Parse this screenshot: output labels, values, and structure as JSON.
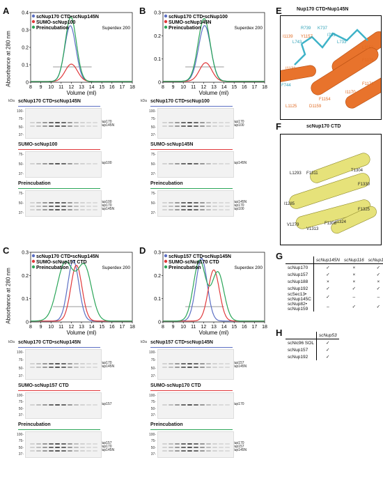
{
  "panels": {
    "A": {
      "letter": "A",
      "legend": [
        "scNup170 CTD•scNup145N",
        "SUMO-scNup100",
        "Preincubation"
      ],
      "column": "Superdex 200"
    },
    "B": {
      "letter": "B",
      "legend": [
        "scNup170 CTD•scNup100",
        "SUMO-scNup145N",
        "Preincubation"
      ],
      "column": "Superdex 200"
    },
    "C": {
      "letter": "C",
      "legend": [
        "scNup170 CTD•scNup145N",
        "SUMO-scNup157 CTD",
        "Preincubation"
      ],
      "column": "Superdex 200"
    },
    "D": {
      "letter": "D",
      "legend": [
        "scNup157 CTD•scNup145N",
        "SUMO-scNup170 CTD",
        "Preincubation"
      ],
      "column": "Superdex 200"
    },
    "E": {
      "letter": "E",
      "title": "Nup170 CTD•Nup145N"
    },
    "F": {
      "letter": "F",
      "title": "scNup170 CTD"
    },
    "G": {
      "letter": "G"
    },
    "H": {
      "letter": "H"
    }
  },
  "axes": {
    "ylabel": "Absorbance at 280 nm",
    "xlabel": "Volume (ml)",
    "kda": "kDa"
  },
  "colors": {
    "blue": "#5b6fc4",
    "red": "#e0383a",
    "green": "#2aa558",
    "orange": "#e8732c",
    "cyan": "#3fb3c8",
    "yellow": "#e6e27a"
  },
  "chart_data": [
    {
      "type": "line",
      "panel": "A",
      "xlim": [
        8,
        18
      ],
      "ylim": [
        0,
        0.4
      ],
      "yticks": [
        0,
        0.1,
        0.2,
        0.3,
        0.4
      ],
      "xticks": [
        8,
        9,
        10,
        11,
        12,
        13,
        14,
        15,
        16,
        17,
        18
      ],
      "series": [
        {
          "name": "scNup170 CTD•scNup145N",
          "color": "#5b6fc4",
          "peak": 11.9,
          "height": 0.32,
          "width": 0.55
        },
        {
          "name": "SUMO-scNup100",
          "color": "#e0383a",
          "peak": 12.0,
          "height": 0.1,
          "width": 0.6
        },
        {
          "name": "Preincubation",
          "color": "#2aa558",
          "peak": 11.95,
          "height": 0.37,
          "width": 0.55
        }
      ]
    },
    {
      "type": "line",
      "panel": "B",
      "xlim": [
        8,
        18
      ],
      "ylim": [
        0,
        0.3
      ],
      "yticks": [
        0,
        0.1,
        0.2,
        0.3
      ],
      "xticks": [
        8,
        9,
        10,
        11,
        12,
        13,
        14,
        15,
        16,
        17,
        18
      ],
      "series": [
        {
          "name": "scNup170 CTD•scNup100",
          "color": "#5b6fc4",
          "peak": 12.1,
          "height": 0.24,
          "width": 0.6
        },
        {
          "name": "SUMO-scNup145N",
          "color": "#e0383a",
          "peak": 12.2,
          "height": 0.08,
          "width": 0.6
        },
        {
          "name": "Preincubation",
          "color": "#2aa558",
          "peak": 12.05,
          "height": 0.27,
          "width": 0.6
        }
      ]
    },
    {
      "type": "line",
      "panel": "C",
      "xlim": [
        8,
        18
      ],
      "ylim": [
        0,
        0.3
      ],
      "yticks": [
        0,
        0.1,
        0.2,
        0.3
      ],
      "xticks": [
        8,
        9,
        10,
        11,
        12,
        13,
        14,
        15,
        16,
        17,
        18
      ],
      "series": [
        {
          "name": "scNup170 CTD•scNup145N",
          "color": "#5b6fc4",
          "peak": 12.2,
          "height": 0.26,
          "width": 0.55
        },
        {
          "name": "SUMO-scNup157 CTD",
          "color": "#e0383a",
          "peak": 12.5,
          "height": 0.24,
          "width": 0.55
        },
        {
          "name": "Preincubation",
          "color": "#2aa558",
          "peak": 11.4,
          "height": 0.25,
          "width": 0.8,
          "peak2": 13.3,
          "height2": 0.23,
          "width2": 0.7
        }
      ]
    },
    {
      "type": "line",
      "panel": "D",
      "xlim": [
        8,
        18
      ],
      "ylim": [
        0,
        0.3
      ],
      "yticks": [
        0,
        0.1,
        0.2,
        0.3
      ],
      "xticks": [
        8,
        9,
        10,
        11,
        12,
        13,
        14,
        15,
        16,
        17,
        18
      ],
      "series": [
        {
          "name": "scNup157 CTD•scNup145N",
          "color": "#5b6fc4",
          "peak": 11.8,
          "height": 0.27,
          "width": 0.55
        },
        {
          "name": "SUMO-scNup170 CTD",
          "color": "#e0383a",
          "peak": 13.0,
          "height": 0.22,
          "width": 0.55
        },
        {
          "name": "Preincubation",
          "color": "#2aa558",
          "peak": 11.6,
          "height": 0.26,
          "width": 0.6,
          "peak2": 13.4,
          "height2": 0.21,
          "width2": 0.6
        }
      ]
    }
  ],
  "gels": {
    "A": [
      {
        "title": "scNup170 CTD•scNup145N",
        "color": "#5b6fc4",
        "mw": [
          "100-",
          "75-",
          "50-",
          "37-"
        ],
        "bands": [
          "scNup170",
          "scNup145N"
        ]
      },
      {
        "title": "SUMO-scNup100",
        "color": "#e0383a",
        "mw": [
          "75-",
          "50-",
          "37-"
        ],
        "bands": [
          "scNup100"
        ]
      },
      {
        "title": "Preincubation",
        "color": "#2aa558",
        "mw": [
          "75-",
          "50-",
          "37-"
        ],
        "bands": [
          "scNup100",
          "scNup170",
          "scNup145N"
        ]
      }
    ],
    "B": [
      {
        "title": "scNup170 CTD•scNup100",
        "color": "#5b6fc4",
        "mw": [
          "100-",
          "75-",
          "50-",
          "37-"
        ],
        "bands": [
          "scNup170",
          "scNup100"
        ]
      },
      {
        "title": "SUMO-scNup145N",
        "color": "#e0383a",
        "mw": [
          "75-",
          "50-",
          "37-"
        ],
        "bands": [
          "scNup145N"
        ]
      },
      {
        "title": "Preincubation",
        "color": "#2aa558",
        "mw": [
          "75-",
          "50-",
          "37-"
        ],
        "bands": [
          "scNup145N",
          "scNup170",
          "scNup100"
        ]
      }
    ],
    "C": [
      {
        "title": "scNup170 CTD•scNup145N",
        "color": "#5b6fc4",
        "mw": [
          "100-",
          "75-",
          "50-",
          "37-"
        ],
        "bands": [
          "scNup170",
          "scNup145N"
        ]
      },
      {
        "title": "SUMO-scNup157 CTD",
        "color": "#e0383a",
        "mw": [
          "100-",
          "75-",
          "50-",
          "37-"
        ],
        "bands": [
          "scNup157"
        ]
      },
      {
        "title": "Preincubation",
        "color": "#2aa558",
        "mw": [
          "100-",
          "75-",
          "50-",
          "37-"
        ],
        "bands": [
          "scNup157",
          "scNup170",
          "scNup145N"
        ]
      }
    ],
    "D": [
      {
        "title": "scNup157 CTD•scNup145N",
        "color": "#5b6fc4",
        "mw": [
          "100-",
          "75-",
          "50-",
          "37-"
        ],
        "bands": [
          "scNup157",
          "scNup145N"
        ]
      },
      {
        "title": "SUMO-scNup170 CTD",
        "color": "#e0383a",
        "mw": [
          "100-",
          "75-",
          "50-",
          "37-"
        ],
        "bands": [
          "scNup170"
        ]
      },
      {
        "title": "Preincubation",
        "color": "#2aa558",
        "mw": [
          "100-",
          "75-",
          "50-",
          "37-"
        ],
        "bands": [
          "scNup170",
          "scNup157",
          "scNup145N"
        ]
      }
    ]
  },
  "structE": {
    "residues_cyan": [
      "R739",
      "K737",
      "I735",
      "L743",
      "L733",
      "F744"
    ],
    "residues_orange": [
      "I1139",
      "Y1157",
      "L1150",
      "F1176",
      "F1171",
      "I1131",
      "F1154",
      "L1125",
      "D1159",
      "I1170"
    ]
  },
  "structF": {
    "residues": [
      "L1293",
      "F1311",
      "T1304",
      "F1330",
      "I1285",
      "F1325",
      "I1324",
      "V1279",
      "F1308",
      "V1313"
    ]
  },
  "tableG": {
    "cols": [
      "scNup145N",
      "scNup116",
      "scNup100"
    ],
    "rows": [
      [
        "scNup170",
        "✓",
        "×",
        "✓"
      ],
      [
        "scNup157",
        "✓",
        "×",
        "✓"
      ],
      [
        "scNup188",
        "×",
        "×",
        "×"
      ],
      [
        "scNup192",
        "✓",
        "✓",
        "✓"
      ],
      [
        "scSec13•\nscNup145C",
        "✓",
        "–",
        "–"
      ],
      [
        "scNup82•\nscNup159",
        "–",
        "✓",
        "✓"
      ]
    ]
  },
  "tableH": {
    "cols": [
      "scNup53"
    ],
    "rows": [
      [
        "scNic96 SOL",
        "✓"
      ],
      [
        "scNup157",
        "✓"
      ],
      [
        "scNup192",
        "✓"
      ]
    ]
  }
}
